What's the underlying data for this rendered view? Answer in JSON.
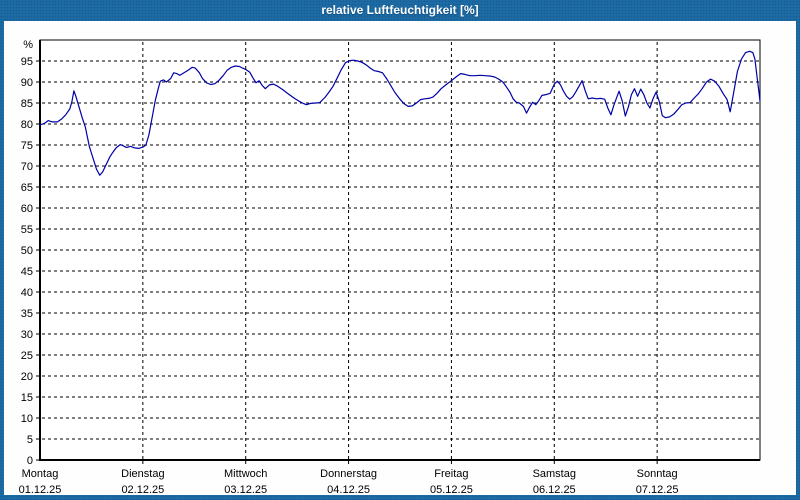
{
  "window": {
    "title": "relative Luftfeuchtigkeit [%]"
  },
  "colors": {
    "titlebar_bg": "#1d6ca6",
    "title_text": "#ffffff",
    "content_bg": "#fdfefd",
    "plot_bg": "#ffffff",
    "grid": "#000000",
    "frame": "#000000",
    "axis_text": "#000000",
    "line": "#0000a8"
  },
  "chart_data": {
    "type": "line",
    "title": "relative Luftfeuchtigkeit [%]",
    "ylabel": "%",
    "y_unit_label": "%",
    "ylim": [
      0,
      100
    ],
    "y_ticks": [
      0,
      5,
      10,
      15,
      20,
      25,
      30,
      35,
      40,
      45,
      50,
      55,
      60,
      65,
      70,
      75,
      80,
      85,
      90,
      95
    ],
    "grid": true,
    "legend_position": "none",
    "x_axis_note": "x in day units, 0 = Montag 01.12.25 00:00, 7 = end of Sonntag 07.12.25",
    "x_days": [
      {
        "name": "Montag",
        "date": "01.12.25"
      },
      {
        "name": "Dienstag",
        "date": "02.12.25"
      },
      {
        "name": "Mittwoch",
        "date": "03.12.25"
      },
      {
        "name": "Donnerstag",
        "date": "04.12.25"
      },
      {
        "name": "Freitag",
        "date": "05.12.25"
      },
      {
        "name": "Samstag",
        "date": "06.12.25"
      },
      {
        "name": "Sonntag",
        "date": "07.12.25"
      }
    ],
    "series": [
      {
        "name": "relative Luftfeuchtigkeit",
        "color": "#0000a8",
        "points": [
          [
            0.0,
            79.8
          ],
          [
            0.04,
            80.1
          ],
          [
            0.08,
            80.8
          ],
          [
            0.12,
            80.5
          ],
          [
            0.17,
            80.5
          ],
          [
            0.21,
            81.2
          ],
          [
            0.25,
            82.2
          ],
          [
            0.29,
            83.6
          ],
          [
            0.31,
            85.3
          ],
          [
            0.33,
            87.9
          ],
          [
            0.35,
            86.5
          ],
          [
            0.38,
            84.0
          ],
          [
            0.41,
            81.5
          ],
          [
            0.44,
            79.3
          ],
          [
            0.48,
            74.6
          ],
          [
            0.52,
            71.5
          ],
          [
            0.55,
            69.2
          ],
          [
            0.58,
            67.8
          ],
          [
            0.61,
            68.6
          ],
          [
            0.64,
            70.2
          ],
          [
            0.68,
            72.2
          ],
          [
            0.71,
            73.3
          ],
          [
            0.74,
            74.3
          ],
          [
            0.78,
            75.1
          ],
          [
            0.81,
            74.8
          ],
          [
            0.84,
            74.4
          ],
          [
            0.88,
            74.7
          ],
          [
            0.92,
            74.3
          ],
          [
            0.96,
            74.2
          ],
          [
            1.0,
            74.5
          ],
          [
            1.03,
            75.0
          ],
          [
            1.06,
            77.5
          ],
          [
            1.09,
            81.5
          ],
          [
            1.12,
            85.5
          ],
          [
            1.15,
            88.5
          ],
          [
            1.17,
            90.2
          ],
          [
            1.2,
            90.5
          ],
          [
            1.23,
            90.0
          ],
          [
            1.27,
            90.8
          ],
          [
            1.3,
            92.2
          ],
          [
            1.33,
            92.0
          ],
          [
            1.36,
            91.6
          ],
          [
            1.4,
            92.2
          ],
          [
            1.44,
            92.8
          ],
          [
            1.48,
            93.5
          ],
          [
            1.51,
            93.3
          ],
          [
            1.55,
            92.2
          ],
          [
            1.58,
            90.8
          ],
          [
            1.62,
            89.8
          ],
          [
            1.66,
            89.4
          ],
          [
            1.7,
            89.6
          ],
          [
            1.74,
            90.4
          ],
          [
            1.78,
            91.5
          ],
          [
            1.82,
            92.8
          ],
          [
            1.86,
            93.5
          ],
          [
            1.9,
            93.8
          ],
          [
            1.94,
            93.7
          ],
          [
            1.97,
            93.3
          ],
          [
            2.0,
            93.0
          ],
          [
            2.04,
            92.3
          ],
          [
            2.07,
            91.0
          ],
          [
            2.1,
            89.8
          ],
          [
            2.13,
            90.3
          ],
          [
            2.16,
            89.2
          ],
          [
            2.19,
            88.4
          ],
          [
            2.23,
            89.3
          ],
          [
            2.27,
            89.5
          ],
          [
            2.31,
            89.0
          ],
          [
            2.36,
            88.2
          ],
          [
            2.4,
            87.4
          ],
          [
            2.44,
            86.7
          ],
          [
            2.48,
            86.0
          ],
          [
            2.52,
            85.4
          ],
          [
            2.56,
            84.9
          ],
          [
            2.59,
            84.6
          ],
          [
            2.63,
            84.9
          ],
          [
            2.68,
            85.0
          ],
          [
            2.72,
            85.1
          ],
          [
            2.77,
            86.3
          ],
          [
            2.81,
            87.6
          ],
          [
            2.85,
            89.0
          ],
          [
            2.89,
            91.0
          ],
          [
            2.93,
            93.0
          ],
          [
            2.97,
            94.6
          ],
          [
            3.01,
            95.1
          ],
          [
            3.05,
            95.2
          ],
          [
            3.09,
            95.0
          ],
          [
            3.13,
            94.7
          ],
          [
            3.17,
            94.1
          ],
          [
            3.21,
            93.3
          ],
          [
            3.25,
            92.7
          ],
          [
            3.29,
            92.5
          ],
          [
            3.33,
            92.2
          ],
          [
            3.37,
            90.8
          ],
          [
            3.41,
            89.2
          ],
          [
            3.45,
            87.5
          ],
          [
            3.5,
            85.9
          ],
          [
            3.54,
            84.8
          ],
          [
            3.58,
            84.2
          ],
          [
            3.62,
            84.3
          ],
          [
            3.66,
            85.0
          ],
          [
            3.7,
            85.8
          ],
          [
            3.74,
            86.0
          ],
          [
            3.78,
            86.1
          ],
          [
            3.82,
            86.4
          ],
          [
            3.86,
            87.3
          ],
          [
            3.9,
            88.4
          ],
          [
            3.95,
            89.4
          ],
          [
            4.0,
            90.3
          ],
          [
            4.05,
            91.3
          ],
          [
            4.09,
            92.0
          ],
          [
            4.13,
            91.8
          ],
          [
            4.18,
            91.5
          ],
          [
            4.23,
            91.5
          ],
          [
            4.28,
            91.6
          ],
          [
            4.33,
            91.5
          ],
          [
            4.38,
            91.4
          ],
          [
            4.42,
            91.2
          ],
          [
            4.46,
            90.7
          ],
          [
            4.5,
            90.0
          ],
          [
            4.53,
            89.0
          ],
          [
            4.57,
            87.5
          ],
          [
            4.6,
            86.0
          ],
          [
            4.63,
            85.2
          ],
          [
            4.66,
            85.0
          ],
          [
            4.7,
            84.2
          ],
          [
            4.73,
            82.6
          ],
          [
            4.76,
            84.0
          ],
          [
            4.79,
            85.2
          ],
          [
            4.82,
            84.6
          ],
          [
            4.85,
            85.6
          ],
          [
            4.88,
            86.8
          ],
          [
            4.92,
            87.0
          ],
          [
            4.96,
            87.3
          ],
          [
            5.0,
            89.5
          ],
          [
            5.03,
            90.2
          ],
          [
            5.06,
            89.3
          ],
          [
            5.09,
            87.8
          ],
          [
            5.12,
            86.6
          ],
          [
            5.15,
            85.9
          ],
          [
            5.18,
            86.5
          ],
          [
            5.21,
            87.7
          ],
          [
            5.24,
            89.0
          ],
          [
            5.27,
            90.3
          ],
          [
            5.3,
            88.0
          ],
          [
            5.33,
            86.0
          ],
          [
            5.37,
            86.2
          ],
          [
            5.41,
            86.0
          ],
          [
            5.45,
            86.1
          ],
          [
            5.49,
            85.9
          ],
          [
            5.52,
            83.8
          ],
          [
            5.55,
            82.2
          ],
          [
            5.58,
            84.5
          ],
          [
            5.61,
            86.5
          ],
          [
            5.63,
            87.8
          ],
          [
            5.66,
            85.5
          ],
          [
            5.69,
            81.9
          ],
          [
            5.72,
            84.0
          ],
          [
            5.75,
            87.0
          ],
          [
            5.78,
            88.4
          ],
          [
            5.81,
            86.6
          ],
          [
            5.84,
            88.3
          ],
          [
            5.87,
            87.0
          ],
          [
            5.9,
            85.0
          ],
          [
            5.93,
            83.8
          ],
          [
            5.96,
            86.0
          ],
          [
            5.99,
            87.6
          ],
          [
            6.02,
            85.4
          ],
          [
            6.05,
            82.0
          ],
          [
            6.08,
            81.5
          ],
          [
            6.12,
            81.7
          ],
          [
            6.16,
            82.3
          ],
          [
            6.2,
            83.4
          ],
          [
            6.24,
            84.6
          ],
          [
            6.28,
            85.0
          ],
          [
            6.32,
            85.1
          ],
          [
            6.36,
            86.2
          ],
          [
            6.4,
            87.2
          ],
          [
            6.44,
            88.5
          ],
          [
            6.48,
            90.0
          ],
          [
            6.52,
            90.7
          ],
          [
            6.56,
            90.2
          ],
          [
            6.6,
            89.0
          ],
          [
            6.64,
            87.3
          ],
          [
            6.68,
            85.8
          ],
          [
            6.71,
            82.9
          ],
          [
            6.74,
            87.0
          ],
          [
            6.78,
            92.5
          ],
          [
            6.82,
            95.5
          ],
          [
            6.86,
            97.0
          ],
          [
            6.9,
            97.3
          ],
          [
            6.93,
            97.0
          ],
          [
            6.95,
            95.5
          ],
          [
            6.97,
            91.5
          ],
          [
            6.99,
            87.5
          ],
          [
            7.0,
            85.4
          ]
        ]
      }
    ]
  }
}
